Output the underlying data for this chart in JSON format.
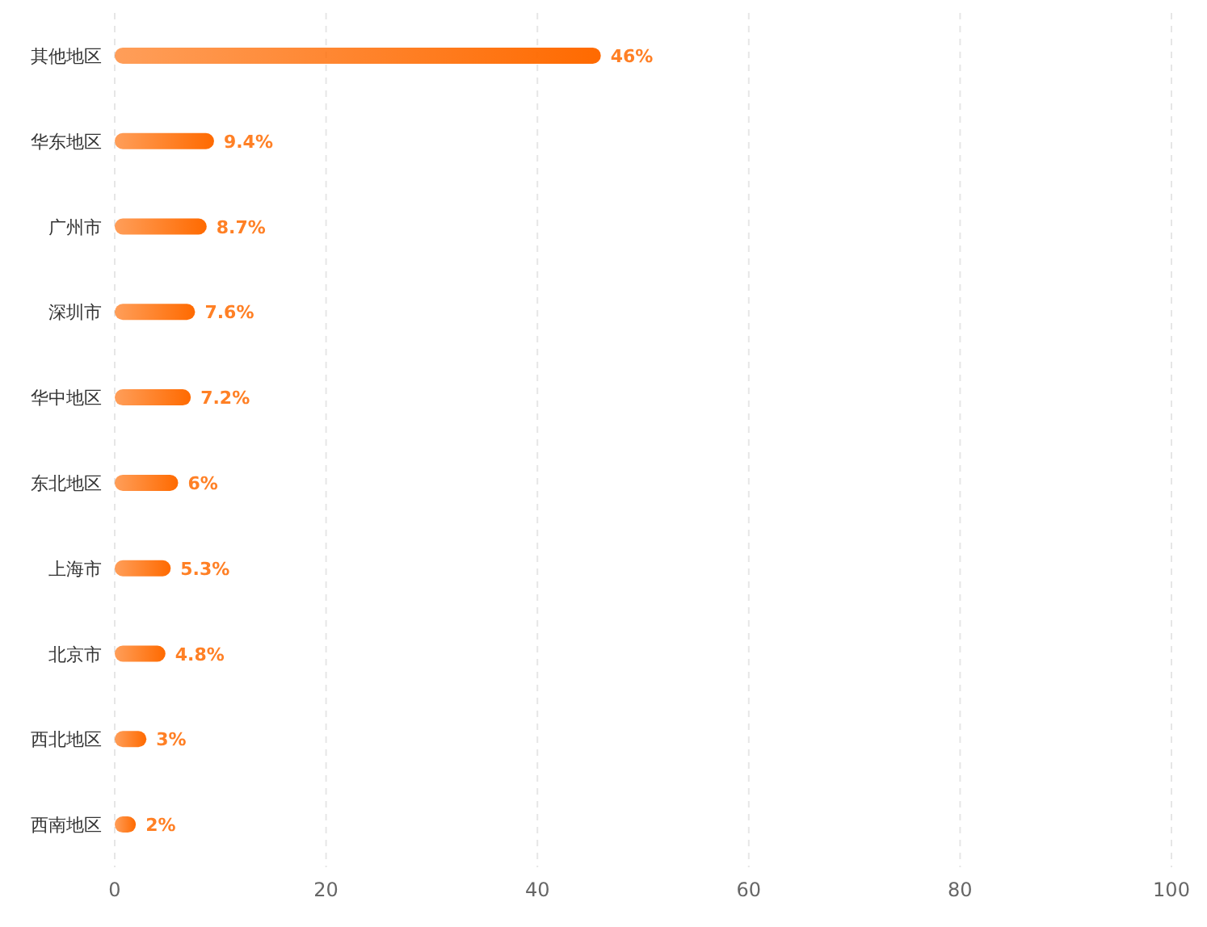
{
  "chart_data": {
    "type": "bar",
    "orientation": "horizontal",
    "categories": [
      "其他地区",
      "华东地区",
      "广州市",
      "深圳市",
      "华中地区",
      "东北地区",
      "上海市",
      "北京市",
      "西北地区",
      "西南地区"
    ],
    "values": [
      46,
      9.4,
      8.7,
      7.6,
      7.2,
      6,
      5.3,
      4.8,
      3,
      2
    ],
    "value_labels": [
      "46%",
      "9.4%",
      "8.7%",
      "7.6%",
      "7.2%",
      "6%",
      "5.3%",
      "4.8%",
      "3%",
      "2%"
    ],
    "color": "#ff6a00",
    "xlim": [
      0,
      100
    ],
    "xticks": [
      0,
      20,
      40,
      60,
      80,
      100
    ],
    "grid": "x"
  }
}
